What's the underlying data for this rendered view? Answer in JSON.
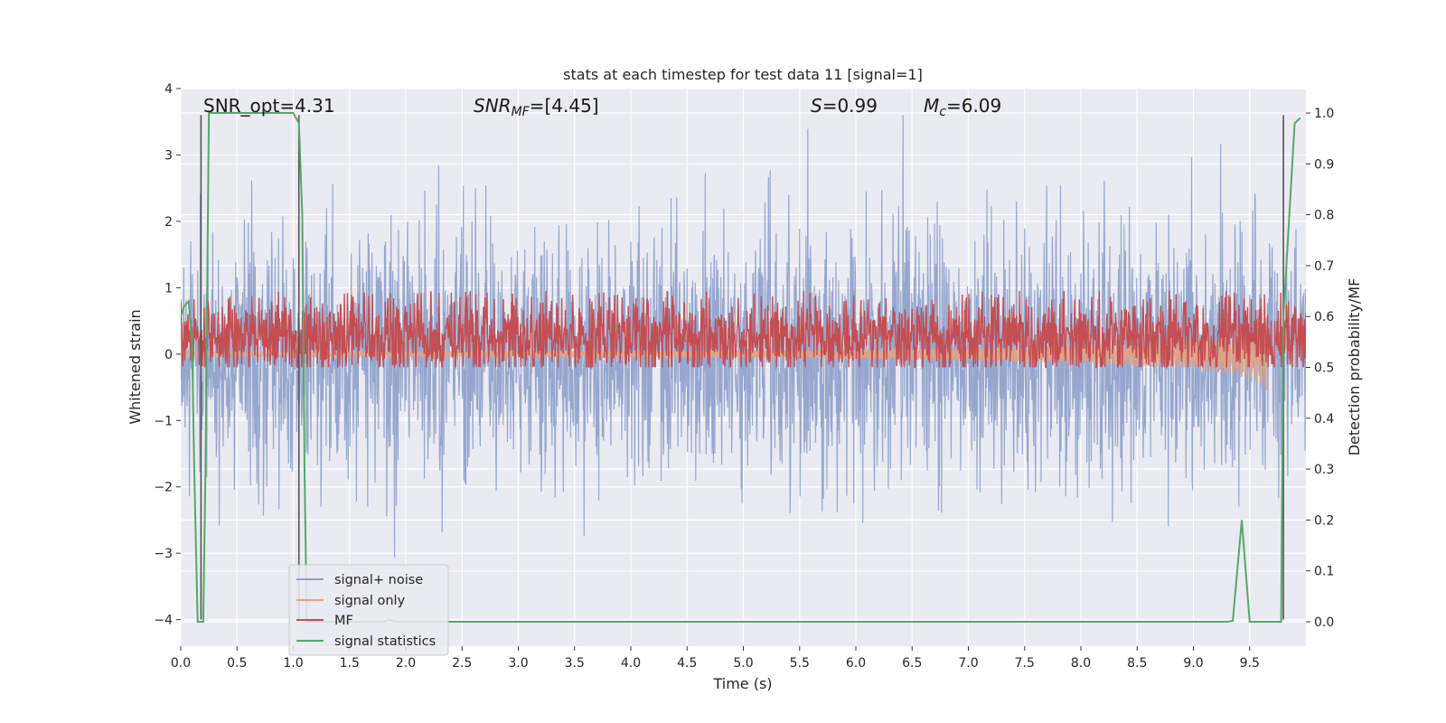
{
  "chart_data": {
    "type": "line",
    "title": "stats at each timestep for test data 11 [signal=1]",
    "xlabel": "Time (s)",
    "ylabel_left": "Whitened strain",
    "ylabel_right": "Detection probability/MF",
    "xlim": [
      0.0,
      10.0
    ],
    "ylim_left": [
      -4.4,
      4.0
    ],
    "ylim_right": [
      -0.048,
      1.048
    ],
    "x_ticks": [
      "0.0",
      "0.5",
      "1.0",
      "1.5",
      "2.0",
      "2.5",
      "3.0",
      "3.5",
      "4.0",
      "4.5",
      "5.0",
      "5.5",
      "6.0",
      "6.5",
      "7.0",
      "7.5",
      "8.0",
      "8.5",
      "9.0",
      "9.5"
    ],
    "y_left_ticks": [
      "−4",
      "−3",
      "−2",
      "−1",
      "0",
      "1",
      "2",
      "3",
      "4"
    ],
    "y_right_ticks": [
      "0.0",
      "0.1",
      "0.2",
      "0.3",
      "0.4",
      "0.5",
      "0.6",
      "0.7",
      "0.8",
      "0.9",
      "1.0"
    ],
    "grid": true,
    "annotations": {
      "snr_opt": "SNR_opt=4.31",
      "snr_mf_italic": "SNR",
      "snr_mf_sub": "MF",
      "snr_mf_rest": "=[4.45]",
      "s_italic": "S",
      "s_rest": "=0.99",
      "mc_italic": "M",
      "mc_sub": "c",
      "mc_rest": "=6.09"
    },
    "legend": {
      "placement": "lower-left",
      "entries": [
        {
          "label": "signal+ noise",
          "color": "#8da0cb"
        },
        {
          "label": "signal only",
          "color": "#e8a27c"
        },
        {
          "label": "MF",
          "color": "#c44e52"
        },
        {
          "label": "signal statistics",
          "color": "#55a868"
        }
      ]
    },
    "series": [
      {
        "name": "signal+ noise",
        "axis": "left",
        "kind": "noise",
        "color": "#8da0cb",
        "center": 0.0,
        "typical_range": [
          -2.0,
          2.4
        ],
        "extreme_range": [
          -4.0,
          3.6
        ]
      },
      {
        "name": "signal only",
        "axis": "left",
        "kind": "chirp",
        "color": "#e8a27c",
        "x_end": 9.65,
        "amplitude": [
          [
            0.0,
            0.03
          ],
          [
            5.5,
            0.06
          ],
          [
            7.0,
            0.1
          ],
          [
            8.0,
            0.14
          ],
          [
            9.0,
            0.22
          ],
          [
            9.5,
            0.35
          ],
          [
            9.65,
            0.55
          ]
        ]
      },
      {
        "name": "MF",
        "axis": "right",
        "kind": "noise",
        "color": "#c44e52",
        "band": [
          0.5,
          0.62
        ],
        "peak": 0.65
      },
      {
        "name": "signal statistics",
        "axis": "right",
        "color": "#55a868",
        "x": [
          0.0,
          0.03,
          0.07,
          0.1,
          0.12,
          0.15,
          0.2,
          0.22,
          0.25,
          0.3,
          1.0,
          1.05,
          1.08,
          1.1,
          1.12,
          1.8,
          1.85,
          1.9,
          9.3,
          9.35,
          9.43,
          9.5,
          9.78,
          9.8,
          9.9,
          9.95
        ],
        "y": [
          0.6,
          0.62,
          0.63,
          0.55,
          0.3,
          0.0,
          0.0,
          0.3,
          1.0,
          1.0,
          1.0,
          0.98,
          0.8,
          0.3,
          0.0,
          0.0,
          0.004,
          0.0,
          0.0,
          0.002,
          0.2,
          0.0,
          0.0,
          0.6,
          0.98,
          0.99
        ]
      },
      {
        "name": "",
        "axis": "left",
        "kind": "markers",
        "color": "#555555",
        "x": [
          0.18,
          1.05,
          9.8
        ],
        "y_range": [
          -4.0,
          3.6
        ]
      }
    ]
  }
}
